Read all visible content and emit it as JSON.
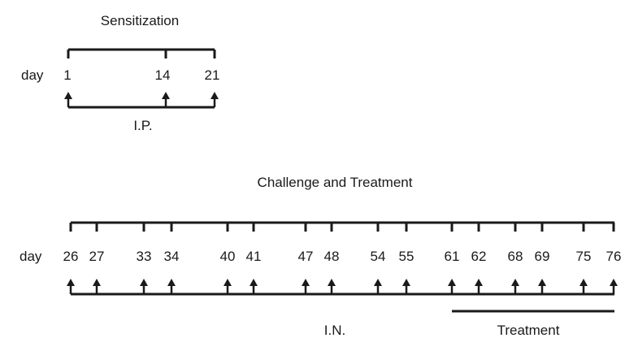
{
  "sensitization": {
    "title": "Sensitization",
    "day_label": "day",
    "days": [
      "1",
      "14",
      "21"
    ],
    "route_label": "I.P."
  },
  "challenge": {
    "title": "Challenge and Treatment",
    "day_label": "day",
    "days": [
      "26",
      "27",
      "33",
      "34",
      "40",
      "41",
      "47",
      "48",
      "54",
      "55",
      "61",
      "62",
      "68",
      "69",
      "75",
      "76"
    ],
    "route_label": "I.N.",
    "treatment_label": "Treatment",
    "treatment_range": [
      "61",
      "76"
    ]
  }
}
